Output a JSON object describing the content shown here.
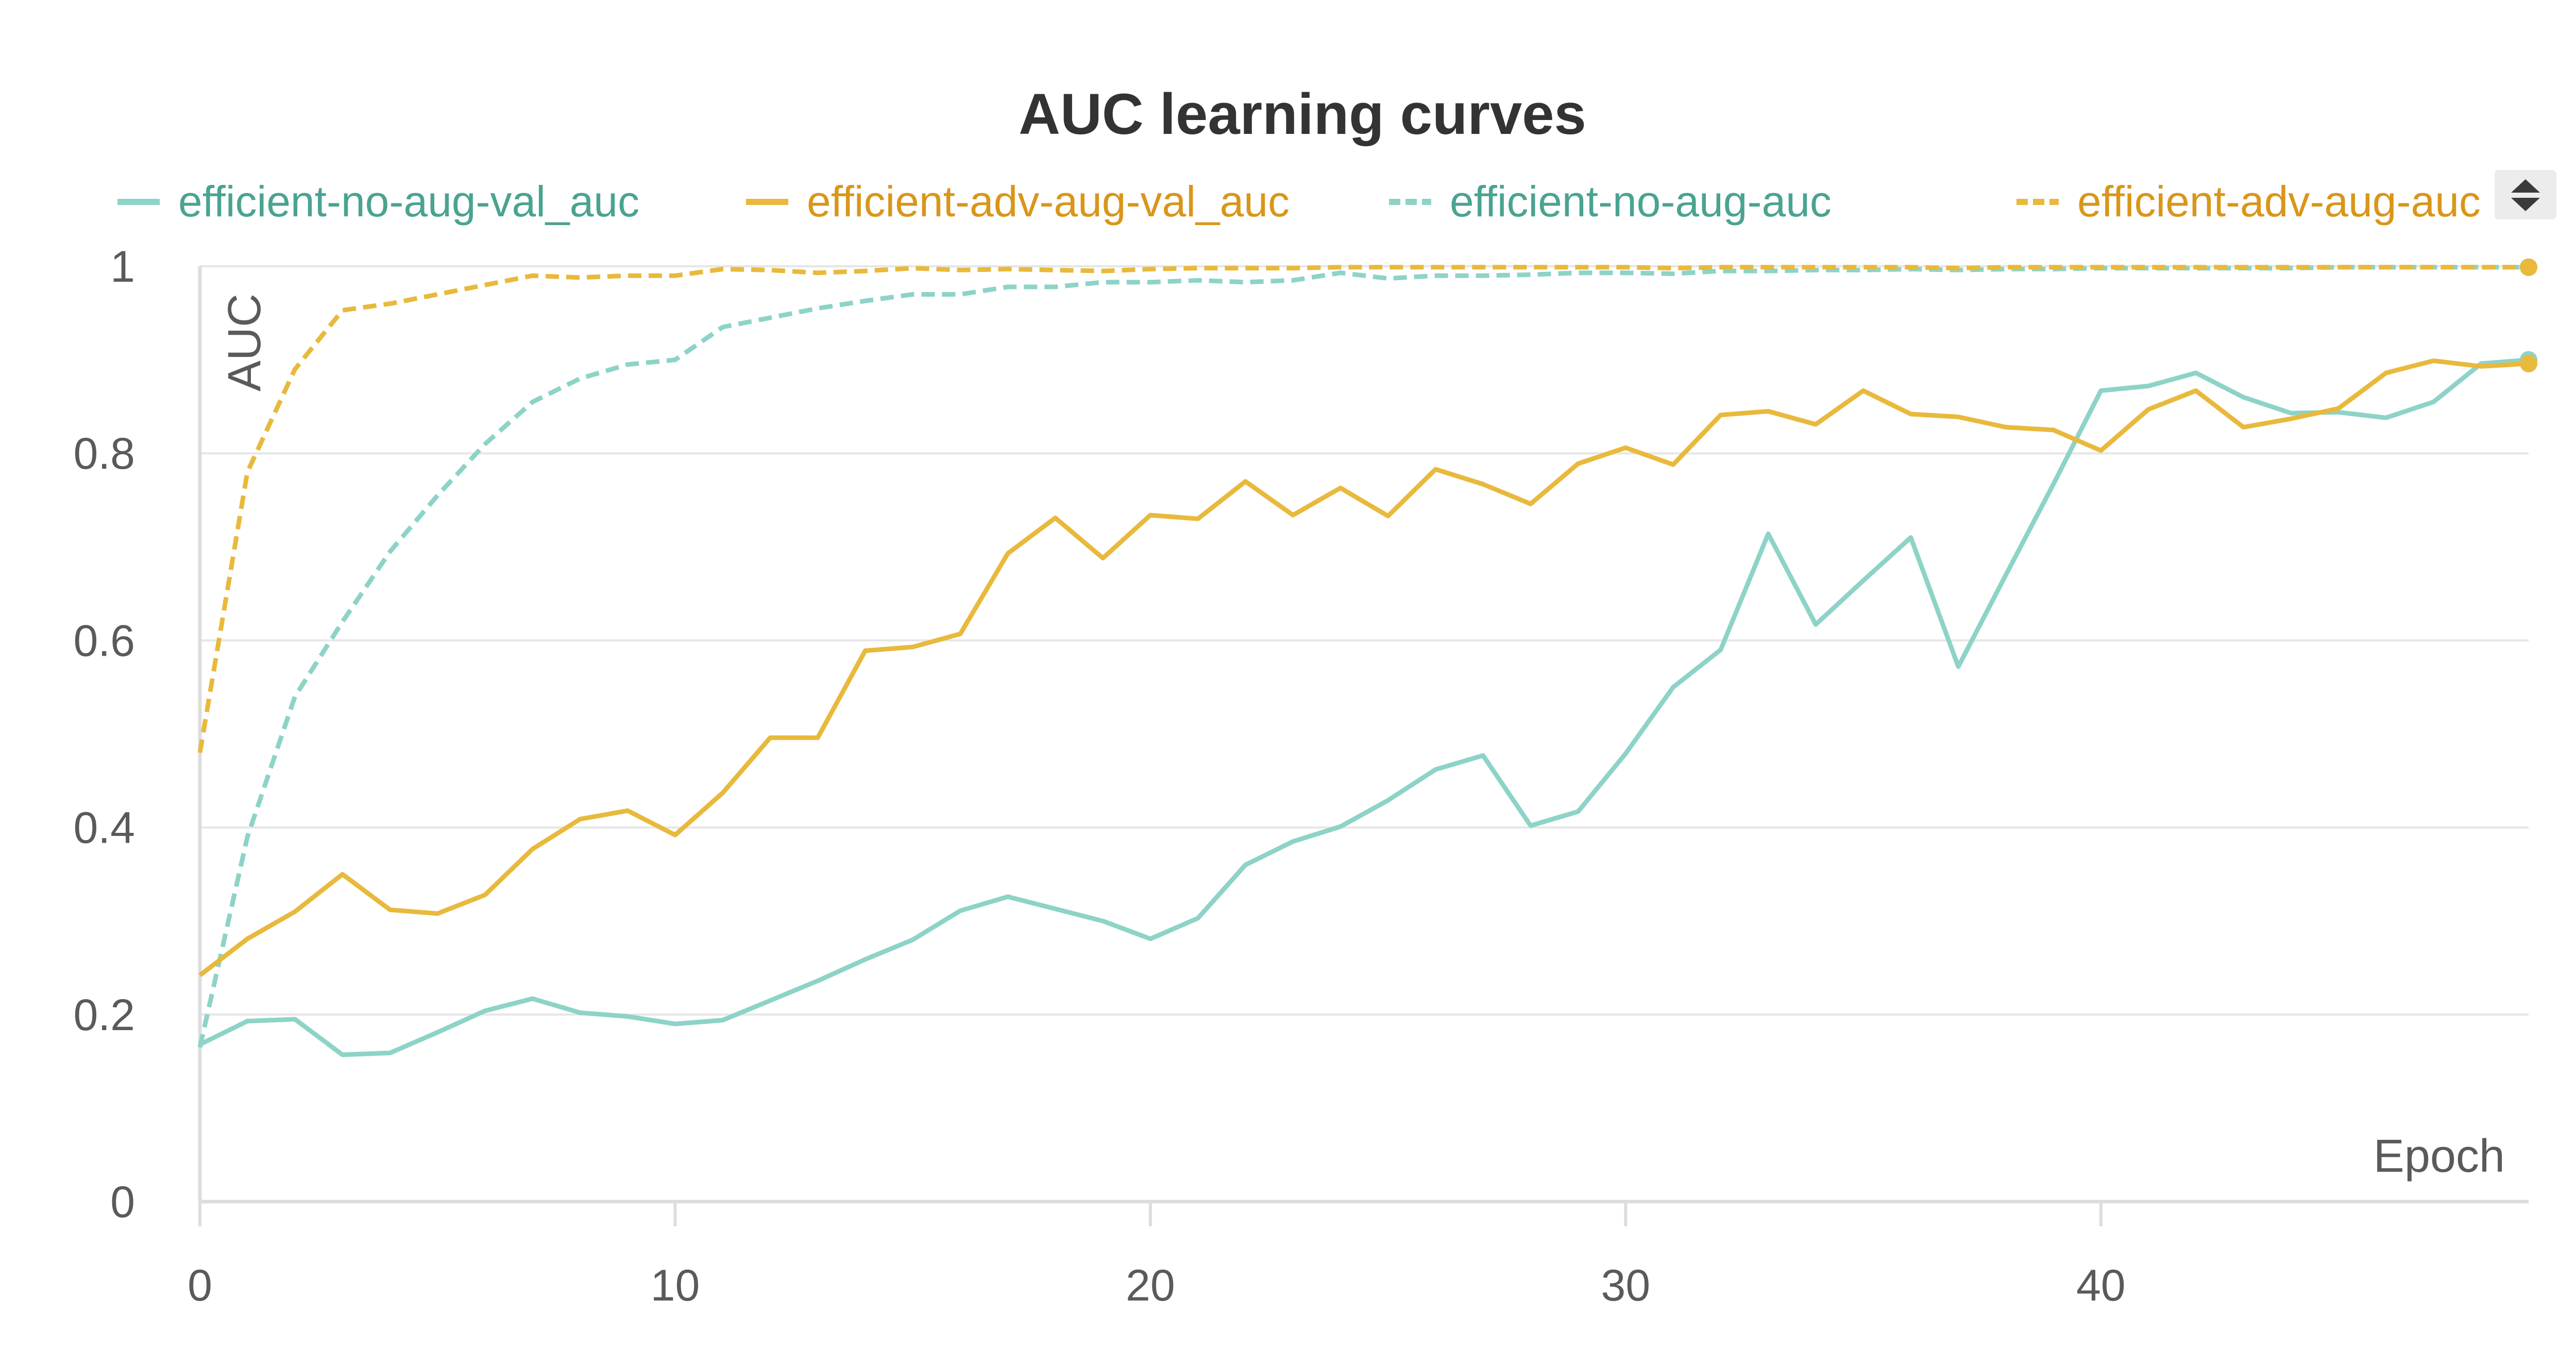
{
  "chart_data": {
    "type": "line",
    "title": "AUC learning curves",
    "xlabel": "Epoch",
    "ylabel": "AUC",
    "xlim": [
      0,
      49
    ],
    "ylim": [
      0,
      1
    ],
    "x_ticks": [
      "0",
      "10",
      "20",
      "30",
      "40"
    ],
    "y_ticks": [
      "0",
      "0.2",
      "0.4",
      "0.6",
      "0.8",
      "1"
    ],
    "grid": true,
    "legend_position": "top",
    "legend_toggle_icon": "sort-arrows-icon",
    "series": [
      {
        "name": "efficient-no-aug-val_auc",
        "color": "#8dd3c7",
        "dash": "solid",
        "label_color": "#4aa391",
        "x": [
          0,
          1,
          2,
          3,
          4,
          5,
          6,
          7,
          8,
          9,
          10,
          11,
          12,
          13,
          14,
          15,
          16,
          17,
          18,
          19,
          20,
          21,
          22,
          23,
          24,
          25,
          26,
          27,
          28,
          29,
          30,
          31,
          32,
          33,
          34,
          35,
          36,
          37,
          38,
          39,
          40,
          41,
          42,
          43,
          44,
          45,
          46,
          47,
          48,
          49
        ],
        "y": [
          0.168,
          0.193,
          0.195,
          0.157,
          0.159,
          0.181,
          0.204,
          0.217,
          0.202,
          0.198,
          0.19,
          0.194,
          0.215,
          0.236,
          0.259,
          0.28,
          0.311,
          0.326,
          0.313,
          0.3,
          0.281,
          0.303,
          0.36,
          0.385,
          0.401,
          0.429,
          0.462,
          0.477,
          0.402,
          0.417,
          0.479,
          0.55,
          0.59,
          0.714,
          0.617,
          0.664,
          0.71,
          0.572,
          0.67,
          0.767,
          0.867,
          0.872,
          0.886,
          0.86,
          0.843,
          0.844,
          0.838,
          0.855,
          0.896,
          0.9
        ]
      },
      {
        "name": "efficient-adv-aug-val_auc",
        "color": "#e8b93c",
        "dash": "solid",
        "label_color": "#d9961a",
        "x": [
          0,
          1,
          2,
          3,
          4,
          5,
          6,
          7,
          8,
          9,
          10,
          11,
          12,
          13,
          14,
          15,
          16,
          17,
          18,
          19,
          20,
          21,
          22,
          23,
          24,
          25,
          26,
          27,
          28,
          29,
          30,
          31,
          32,
          33,
          34,
          35,
          36,
          37,
          38,
          39,
          40,
          41,
          42,
          43,
          44,
          45,
          46,
          47,
          48,
          49
        ],
        "y": [
          0.242,
          0.281,
          0.31,
          0.35,
          0.312,
          0.308,
          0.328,
          0.377,
          0.409,
          0.418,
          0.392,
          0.437,
          0.496,
          0.496,
          0.589,
          0.593,
          0.607,
          0.693,
          0.731,
          0.688,
          0.734,
          0.73,
          0.77,
          0.734,
          0.763,
          0.733,
          0.783,
          0.767,
          0.746,
          0.789,
          0.806,
          0.788,
          0.841,
          0.845,
          0.831,
          0.867,
          0.842,
          0.839,
          0.828,
          0.825,
          0.803,
          0.847,
          0.867,
          0.828,
          0.837,
          0.848,
          0.886,
          0.899,
          0.893,
          0.896
        ]
      },
      {
        "name": "efficient-no-aug-auc",
        "color": "#8dd3c7",
        "dash": "dashed",
        "label_color": "#4aa391",
        "x": [
          0,
          1,
          2,
          3,
          4,
          5,
          6,
          7,
          8,
          9,
          10,
          11,
          12,
          13,
          14,
          15,
          16,
          17,
          18,
          19,
          20,
          21,
          22,
          23,
          24,
          25,
          26,
          27,
          28,
          29,
          30,
          31,
          32,
          33,
          34,
          35,
          36,
          37,
          38,
          39,
          40,
          41,
          42,
          43,
          44,
          45,
          46,
          47,
          48,
          49
        ],
        "y": [
          0.165,
          0.39,
          0.54,
          0.62,
          0.695,
          0.755,
          0.81,
          0.855,
          0.88,
          0.895,
          0.9,
          0.935,
          0.945,
          0.955,
          0.963,
          0.97,
          0.97,
          0.978,
          0.978,
          0.983,
          0.983,
          0.985,
          0.983,
          0.985,
          0.993,
          0.987,
          0.99,
          0.99,
          0.991,
          0.993,
          0.993,
          0.992,
          0.995,
          0.995,
          0.996,
          0.996,
          0.997,
          0.996,
          0.997,
          0.997,
          0.998,
          0.998,
          0.998,
          0.998,
          0.998,
          0.999,
          0.999,
          0.999,
          0.999,
          0.999
        ]
      },
      {
        "name": "efficient-adv-aug-auc",
        "color": "#e8b93c",
        "dash": "dashed",
        "label_color": "#d9961a",
        "x": [
          0,
          1,
          2,
          3,
          4,
          5,
          6,
          7,
          8,
          9,
          10,
          11,
          12,
          13,
          14,
          15,
          16,
          17,
          18,
          19,
          20,
          21,
          22,
          23,
          24,
          25,
          26,
          27,
          28,
          29,
          30,
          31,
          32,
          33,
          34,
          35,
          36,
          37,
          38,
          39,
          40,
          41,
          42,
          43,
          44,
          45,
          46,
          47,
          48,
          49
        ],
        "y": [
          0.48,
          0.78,
          0.89,
          0.953,
          0.96,
          0.97,
          0.98,
          0.99,
          0.988,
          0.99,
          0.99,
          0.997,
          0.996,
          0.993,
          0.995,
          0.998,
          0.996,
          0.997,
          0.996,
          0.995,
          0.997,
          0.998,
          0.998,
          0.998,
          0.999,
          0.999,
          0.999,
          0.999,
          0.999,
          0.999,
          0.999,
          0.998,
          0.999,
          0.999,
          0.999,
          0.999,
          0.999,
          0.998,
          0.999,
          0.999,
          0.999,
          0.999,
          0.999,
          0.999,
          0.999,
          0.999,
          0.999,
          0.999,
          0.999,
          0.999
        ]
      }
    ]
  }
}
